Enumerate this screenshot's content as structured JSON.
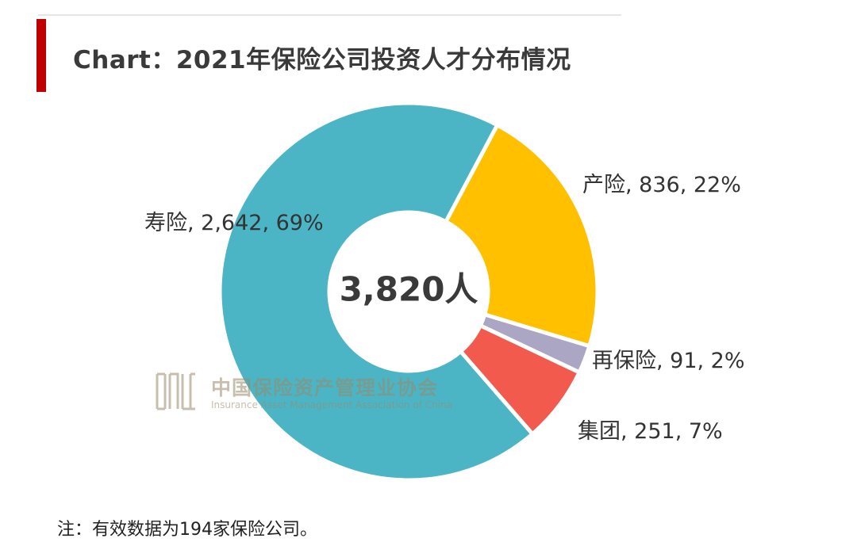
{
  "page": {
    "title": "Chart：2021年保险公司投资人才分布情况",
    "accent_color": "#c00000",
    "note": "注：有效数据为194家保险公司。"
  },
  "watermark": {
    "cn": "中国保险资产管理业协会",
    "en": "Insurance Asset Management Association of China",
    "color": "#9a8a6a"
  },
  "chart_data": {
    "type": "pie",
    "variant": "donut",
    "title": "Chart：2021年保险公司投资人才分布情况",
    "center_label": "3,820人",
    "total": 3820,
    "slices": [
      {
        "name": "寿险",
        "value": 2642,
        "percent": 69,
        "color": "#4bb5c6",
        "label": "寿险, 2,642, 69%"
      },
      {
        "name": "产险",
        "value": 836,
        "percent": 22,
        "color": "#ffc000",
        "label": "产险, 836, 22%"
      },
      {
        "name": "再保险",
        "value": 91,
        "percent": 2,
        "color": "#aaa6c4",
        "label": "再保险, 91, 2%"
      },
      {
        "name": "集团",
        "value": 251,
        "percent": 7,
        "color": "#f15a4d",
        "label": "集团, 251, 7%"
      }
    ],
    "note": "注：有效数据为194家保险公司。"
  }
}
